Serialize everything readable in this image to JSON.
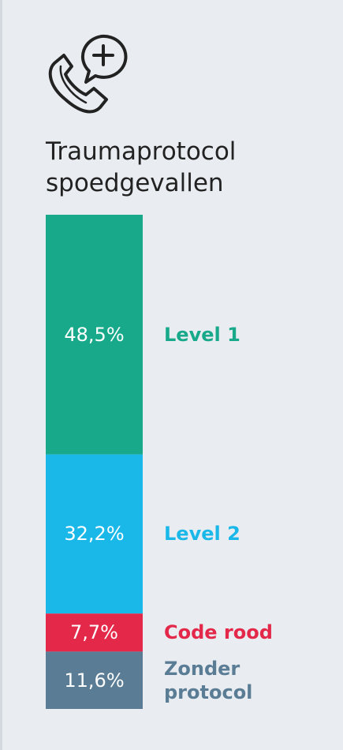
{
  "chart_data": {
    "type": "stacked-bar",
    "title": "Traumaprotocol spoedgevallen",
    "categories": [
      "Level 1",
      "Level 2",
      "Code rood",
      "Zonder protocol"
    ],
    "values": [
      48.5,
      32.2,
      7.7,
      11.6
    ],
    "value_labels": [
      "48,5%",
      "32,2%",
      "7,7%",
      "11,6%"
    ],
    "colors": [
      "#17a98a",
      "#1ab7e9",
      "#e3284a",
      "#5a7d95"
    ]
  }
}
